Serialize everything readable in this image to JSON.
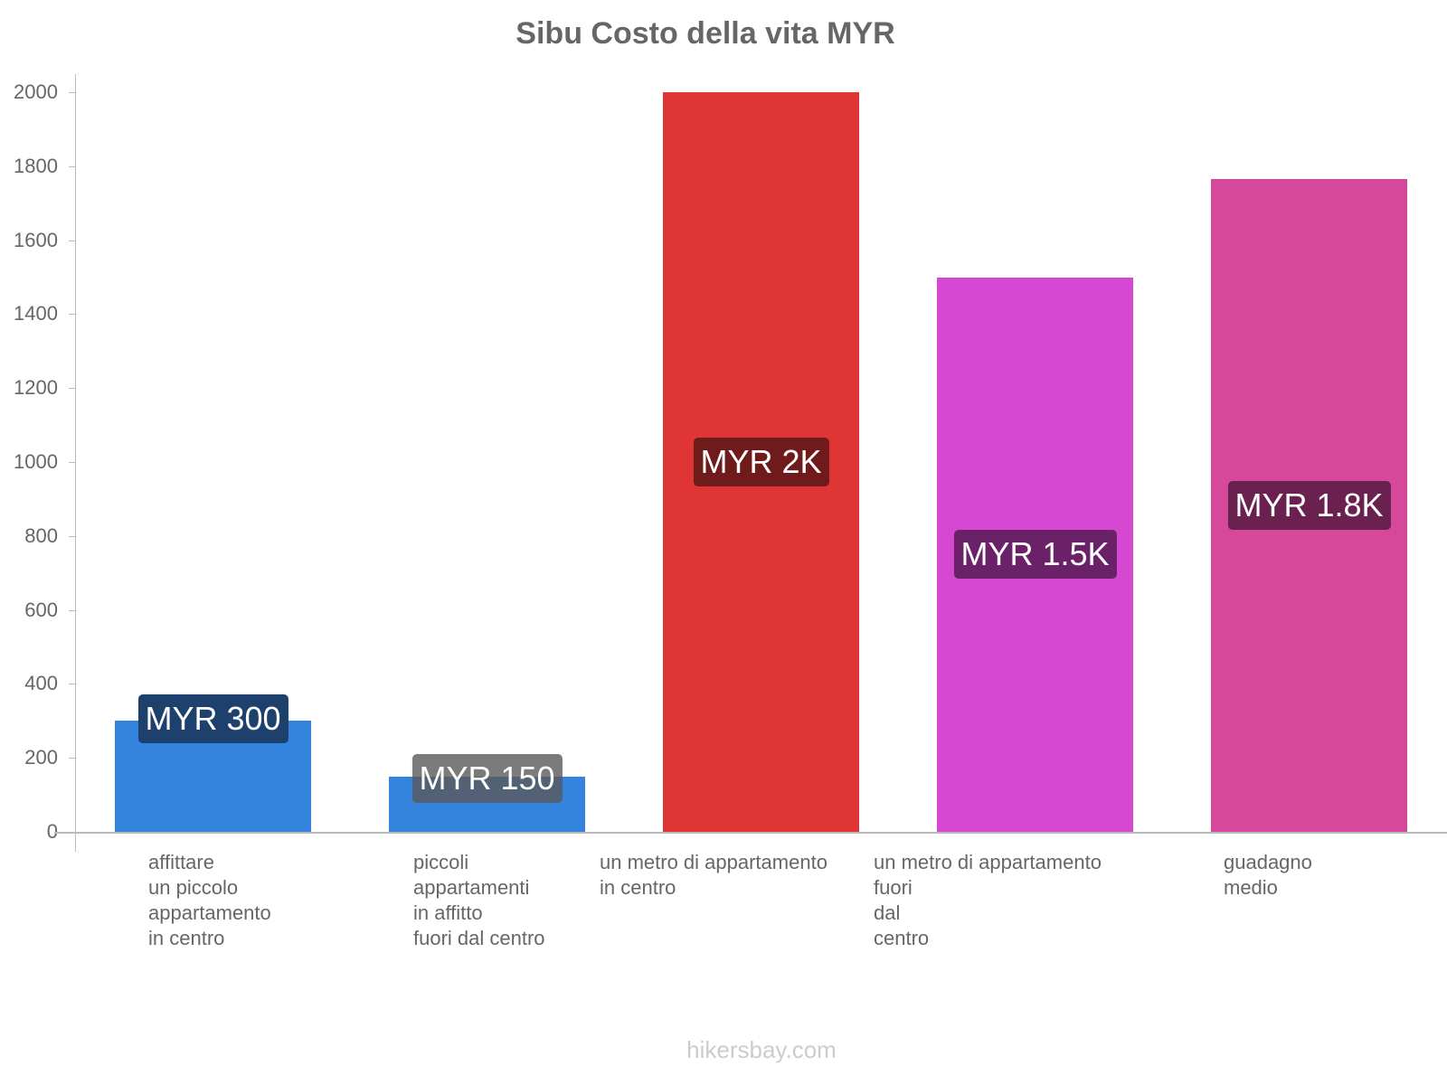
{
  "chart_data": {
    "type": "bar",
    "title": "Sibu Costo della vita MYR",
    "xlabel": "",
    "ylabel": "",
    "ylim": [
      0,
      2000
    ],
    "yticks": [
      0,
      200,
      400,
      600,
      800,
      1000,
      1200,
      1400,
      1600,
      1800,
      2000
    ],
    "grid": false,
    "legend": null,
    "categories": [
      "affittare un piccolo appartamento in centro",
      "piccoli appartamenti in affitto fuori dal centro",
      "un metro di appartamento in centro",
      "un metro di appartamento fuori dal centro",
      "guadagno medio"
    ],
    "values": [
      300,
      150,
      2000,
      1500,
      1765
    ],
    "value_labels": [
      "MYR 300",
      "MYR 150",
      "MYR 2K",
      "MYR 1.5K",
      "MYR 1.8K"
    ],
    "colors": [
      "#3483dd",
      "#3483dd",
      "#e03535",
      "#d648d1",
      "#d6489a"
    ],
    "label_bg_colors": [
      "#1d406c",
      "#1d406c",
      "#701b1b",
      "#6a2168",
      "#6a2150"
    ]
  },
  "title": "Sibu Costo della vita MYR",
  "yticks": [
    "0",
    "200",
    "400",
    "600",
    "800",
    "1000",
    "1200",
    "1400",
    "1600",
    "1800",
    "2000"
  ],
  "bars": [
    {
      "label_lines": "affittare\nun piccolo\nappartamento\nin centro",
      "value_label": "MYR 300"
    },
    {
      "label_lines": "piccoli\nappartamenti\nin affitto\nfuori dal centro",
      "value_label": "MYR 150"
    },
    {
      "label_lines": "un metro di appartamento\nin centro",
      "value_label": "MYR 2K"
    },
    {
      "label_lines": "un metro di appartamento\nfuori\ndal\ncentro",
      "value_label": "MYR 1.5K"
    },
    {
      "label_lines": "guadagno\nmedio",
      "value_label": "MYR 1.8K"
    }
  ],
  "footer": "hikersbay.com"
}
